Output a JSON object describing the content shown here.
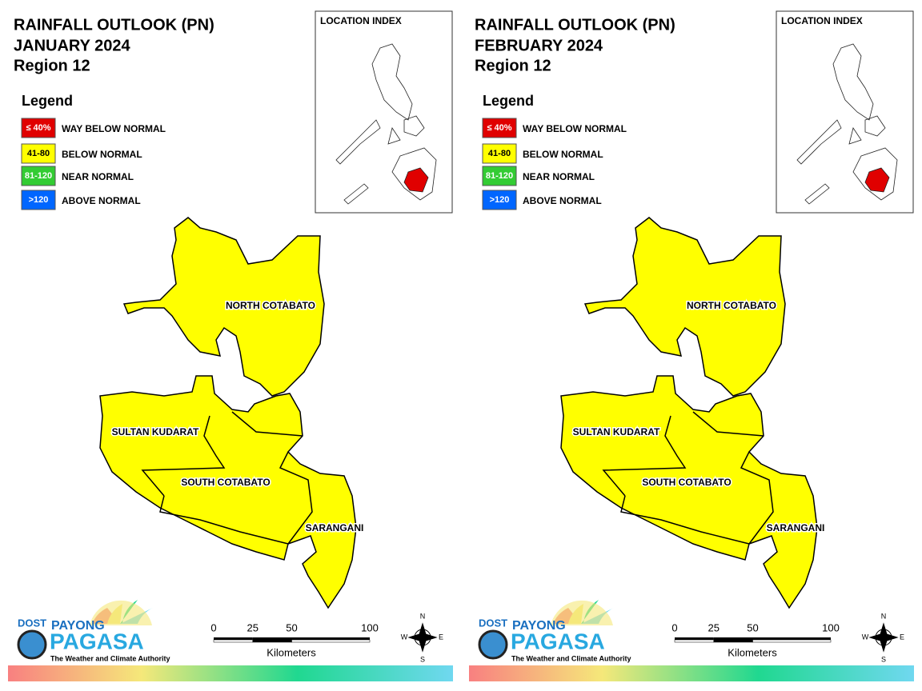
{
  "panels": [
    {
      "title": [
        "RAINFALL OUTLOOK (PN)",
        "JANUARY 2024",
        "Region 12"
      ],
      "legend": {
        "title": "Legend",
        "items": [
          {
            "key": "≤ 40%",
            "label": "WAY BELOW NORMAL",
            "color": "#e00000"
          },
          {
            "key": "41-80",
            "label": "BELOW NORMAL",
            "color": "#ffff00"
          },
          {
            "key": "81-120",
            "label": "NEAR NORMAL",
            "color": "#33cc33"
          },
          {
            "key": ">120",
            "label": "ABOVE NORMAL",
            "color": "#0066ff"
          }
        ]
      },
      "location_index": "LOCATION INDEX",
      "provinces": [
        "NORTH COTABATO",
        "SULTAN KUDARAT",
        "SOUTH COTABATO",
        "SARANGANI"
      ],
      "fill": "#ffff00",
      "scale": {
        "ticks": [
          0,
          25,
          50,
          100
        ],
        "unit": "Kilometers"
      },
      "compass": [
        "N",
        "E",
        "S",
        "W"
      ],
      "logo": {
        "agency": "DOST",
        "name1": "PAYONG",
        "name2": "PAGASA",
        "tagline": "The Weather and Climate Authority"
      }
    },
    {
      "title": [
        "RAINFALL OUTLOOK (PN)",
        "FEBRUARY 2024",
        "Region 12"
      ],
      "legend": {
        "title": "Legend",
        "items": [
          {
            "key": "≤ 40%",
            "label": "WAY BELOW NORMAL",
            "color": "#e00000"
          },
          {
            "key": "41-80",
            "label": "BELOW NORMAL",
            "color": "#ffff00"
          },
          {
            "key": "81-120",
            "label": "NEAR NORMAL",
            "color": "#33cc33"
          },
          {
            "key": ">120",
            "label": "ABOVE NORMAL",
            "color": "#0066ff"
          }
        ]
      },
      "location_index": "LOCATION INDEX",
      "provinces": [
        "NORTH COTABATO",
        "SULTAN KUDARAT",
        "SOUTH COTABATO",
        "SARANGANI"
      ],
      "fill": "#ffff00",
      "scale": {
        "ticks": [
          0,
          25,
          50,
          100
        ],
        "unit": "Kilometers"
      },
      "compass": [
        "N",
        "E",
        "S",
        "W"
      ],
      "logo": {
        "agency": "DOST",
        "name1": "PAYONG",
        "name2": "PAGASA",
        "tagline": "The Weather and Climate Authority"
      }
    }
  ]
}
